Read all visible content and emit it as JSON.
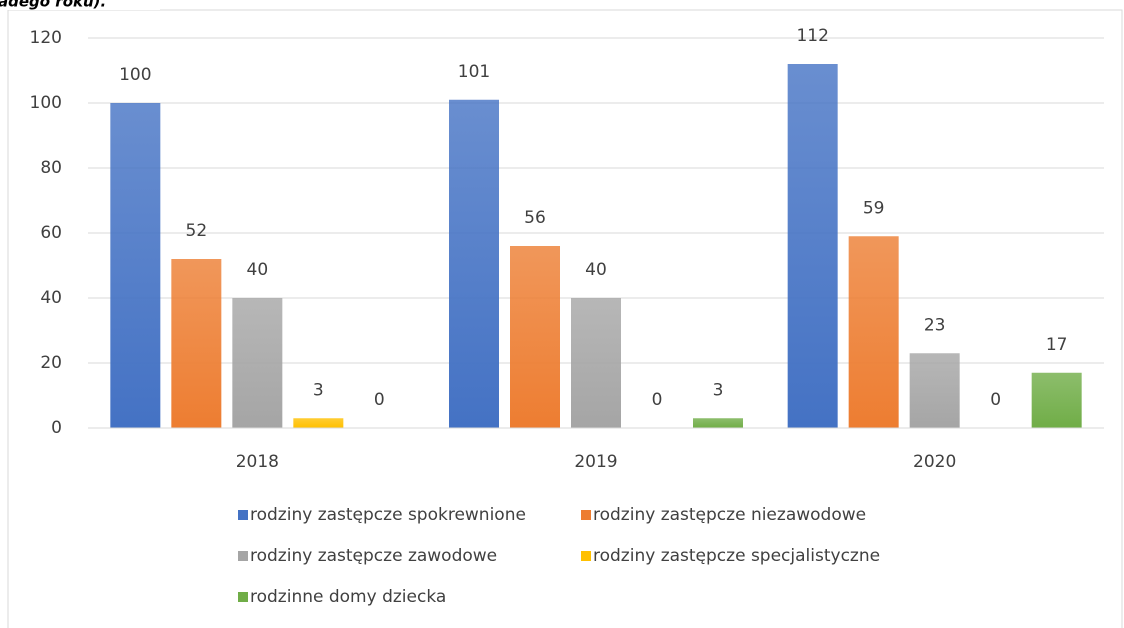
{
  "chart_data": {
    "type": "bar",
    "caption": "adego roku).",
    "categories": [
      "2018",
      "2019",
      "2020"
    ],
    "series": [
      {
        "name": "rodziny zastępcze spokrewnione",
        "color": "#4472c4",
        "values": [
          100,
          101,
          112
        ]
      },
      {
        "name": "rodziny zastępcze niezawodowe",
        "color": "#ed7d31",
        "values": [
          52,
          56,
          59
        ]
      },
      {
        "name": "rodziny zastępcze zawodowe",
        "color": "#a5a5a5",
        "values": [
          40,
          40,
          23
        ]
      },
      {
        "name": "rodziny zastępcze specjalistyczne",
        "color": "#ffc000",
        "values": [
          3,
          0,
          0
        ]
      },
      {
        "name": "rodzinne domy dziecka",
        "color": "#70ad47",
        "values": [
          0,
          3,
          17
        ]
      }
    ],
    "ylim": [
      0,
      120
    ],
    "yticks": [
      0,
      20,
      40,
      60,
      80,
      100,
      120
    ],
    "grid": true,
    "legend": "bottom"
  }
}
